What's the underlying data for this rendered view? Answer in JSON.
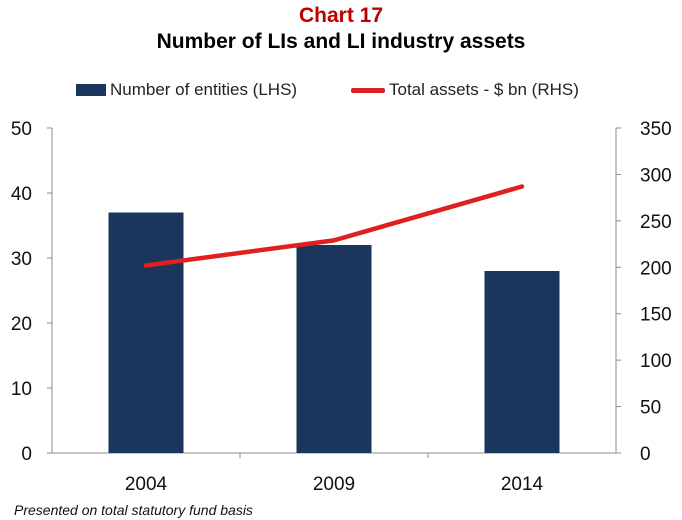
{
  "title": "Chart 17",
  "subtitle": "Number of LIs and LI industry assets",
  "footnote": "Presented on total statutory fund basis",
  "colors": {
    "title": "#c00000",
    "bar": "#1b365d",
    "line": "#e02020",
    "axis": "#8c8c8c"
  },
  "chart_data": {
    "type": "bar",
    "categories": [
      "2004",
      "2009",
      "2014"
    ],
    "series": [
      {
        "name": "Number of entities (LHS)",
        "type": "bar",
        "axis": "left",
        "values": [
          37,
          32,
          28
        ]
      },
      {
        "name": "Total assets - $ bn (RHS)",
        "type": "line",
        "axis": "right",
        "values": [
          202,
          229,
          287
        ]
      }
    ],
    "left_axis": {
      "min": 0,
      "max": 50,
      "ticks": [
        "0",
        "10",
        "20",
        "30",
        "40",
        "50"
      ]
    },
    "right_axis": {
      "min": 0,
      "max": 350,
      "ticks": [
        "0",
        "50",
        "100",
        "150",
        "200",
        "250",
        "300",
        "350"
      ]
    },
    "grid": false,
    "legend_position": "top"
  }
}
